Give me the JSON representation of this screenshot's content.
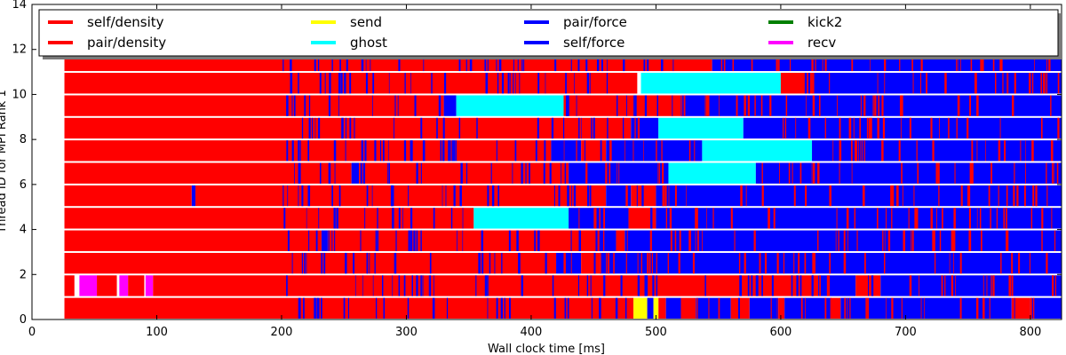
{
  "chart_data": {
    "type": "gantt",
    "xlabel": "Wall clock time [ms]",
    "ylabel": "Thread ID for MPI Rank 1",
    "xlim": [
      0,
      825
    ],
    "ylim": [
      0,
      14
    ],
    "xticks": [
      "0",
      "100",
      "200",
      "300",
      "400",
      "500",
      "600",
      "700",
      "800"
    ],
    "yticks": [
      "0",
      "2",
      "4",
      "6",
      "8",
      "10",
      "12",
      "14"
    ],
    "legend_position": "top",
    "legend": [
      {
        "name": "self/density",
        "color": "#ff0000"
      },
      {
        "name": "pair/density",
        "color": "#ff0000"
      },
      {
        "name": "send",
        "color": "#ffff00"
      },
      {
        "name": "ghost",
        "color": "#00ffff"
      },
      {
        "name": "pair/force",
        "color": "#0000ff"
      },
      {
        "name": "self/force",
        "color": "#0000ff"
      },
      {
        "name": "kick2",
        "color": "#008000"
      },
      {
        "name": "recv",
        "color": "#ff00ff"
      }
    ],
    "threads": [
      {
        "thread": 0,
        "spans": [
          {
            "task": "density",
            "start": 26,
            "end": 482
          },
          {
            "task": "send",
            "start": 482,
            "end": 493
          },
          {
            "task": "force",
            "start": 493,
            "end": 498
          },
          {
            "task": "send",
            "start": 498,
            "end": 502
          },
          {
            "task": "density",
            "start": 502,
            "end": 508
          },
          {
            "task": "force",
            "start": 508,
            "end": 520
          },
          {
            "task": "density",
            "start": 520,
            "end": 532
          },
          {
            "task": "force",
            "start": 532,
            "end": 560
          },
          {
            "task": "density",
            "start": 560,
            "end": 575
          },
          {
            "task": "force",
            "start": 575,
            "end": 598
          },
          {
            "task": "density",
            "start": 598,
            "end": 603
          },
          {
            "task": "force",
            "start": 603,
            "end": 640
          },
          {
            "task": "density",
            "start": 640,
            "end": 648
          },
          {
            "task": "force",
            "start": 648,
            "end": 785
          },
          {
            "task": "density",
            "start": 785,
            "end": 800
          },
          {
            "task": "force",
            "start": 800,
            "end": 825
          }
        ]
      },
      {
        "thread": 1,
        "spans": [
          {
            "task": "density",
            "start": 26,
            "end": 34
          },
          {
            "task": "recv",
            "start": 38,
            "end": 52
          },
          {
            "task": "density",
            "start": 52,
            "end": 68
          },
          {
            "task": "recv",
            "start": 70,
            "end": 77
          },
          {
            "task": "density",
            "start": 77,
            "end": 90
          },
          {
            "task": "recv",
            "start": 91,
            "end": 97
          },
          {
            "task": "density",
            "start": 97,
            "end": 630
          },
          {
            "task": "force",
            "start": 630,
            "end": 660
          },
          {
            "task": "density",
            "start": 660,
            "end": 680
          },
          {
            "task": "force",
            "start": 680,
            "end": 825
          }
        ]
      },
      {
        "thread": 2,
        "spans": [
          {
            "task": "density",
            "start": 26,
            "end": 420
          },
          {
            "task": "force",
            "start": 420,
            "end": 440
          },
          {
            "task": "density",
            "start": 440,
            "end": 455
          },
          {
            "task": "force",
            "start": 455,
            "end": 825
          }
        ]
      },
      {
        "thread": 3,
        "spans": [
          {
            "task": "density",
            "start": 26,
            "end": 232
          },
          {
            "task": "force",
            "start": 232,
            "end": 237
          },
          {
            "task": "density",
            "start": 237,
            "end": 455
          },
          {
            "task": "force",
            "start": 455,
            "end": 468
          },
          {
            "task": "density",
            "start": 468,
            "end": 475
          },
          {
            "task": "force",
            "start": 475,
            "end": 825
          }
        ]
      },
      {
        "thread": 4,
        "spans": [
          {
            "task": "density",
            "start": 26,
            "end": 354
          },
          {
            "task": "ghost",
            "start": 354,
            "end": 430
          },
          {
            "task": "force",
            "start": 430,
            "end": 478
          },
          {
            "task": "density",
            "start": 478,
            "end": 500
          },
          {
            "task": "force",
            "start": 500,
            "end": 825
          }
        ]
      },
      {
        "thread": 5,
        "spans": [
          {
            "task": "density",
            "start": 26,
            "end": 128
          },
          {
            "task": "force",
            "start": 128,
            "end": 131
          },
          {
            "task": "density",
            "start": 131,
            "end": 460
          },
          {
            "task": "force",
            "start": 460,
            "end": 480
          },
          {
            "task": "density",
            "start": 480,
            "end": 500
          },
          {
            "task": "force",
            "start": 500,
            "end": 825
          }
        ]
      },
      {
        "thread": 6,
        "spans": [
          {
            "task": "density",
            "start": 26,
            "end": 256
          },
          {
            "task": "force",
            "start": 256,
            "end": 262
          },
          {
            "task": "density",
            "start": 262,
            "end": 430
          },
          {
            "task": "force",
            "start": 430,
            "end": 510
          },
          {
            "task": "ghost",
            "start": 510,
            "end": 580
          },
          {
            "task": "force",
            "start": 580,
            "end": 825
          }
        ]
      },
      {
        "thread": 7,
        "spans": [
          {
            "task": "density",
            "start": 26,
            "end": 416
          },
          {
            "task": "force",
            "start": 416,
            "end": 440
          },
          {
            "task": "density",
            "start": 440,
            "end": 460
          },
          {
            "task": "force",
            "start": 460,
            "end": 537
          },
          {
            "task": "ghost",
            "start": 537,
            "end": 625
          },
          {
            "task": "force",
            "start": 625,
            "end": 825
          }
        ]
      },
      {
        "thread": 8,
        "spans": [
          {
            "task": "density",
            "start": 26,
            "end": 480
          },
          {
            "task": "force",
            "start": 480,
            "end": 502
          },
          {
            "task": "ghost",
            "start": 502,
            "end": 570
          },
          {
            "task": "force",
            "start": 570,
            "end": 825
          }
        ]
      },
      {
        "thread": 9,
        "spans": [
          {
            "task": "density",
            "start": 26,
            "end": 330
          },
          {
            "task": "force",
            "start": 330,
            "end": 340
          },
          {
            "task": "ghost",
            "start": 340,
            "end": 426
          },
          {
            "task": "density",
            "start": 426,
            "end": 520
          },
          {
            "task": "force",
            "start": 520,
            "end": 825
          }
        ]
      },
      {
        "thread": 10,
        "spans": [
          {
            "task": "density",
            "start": 26,
            "end": 485
          },
          {
            "task": "ghost",
            "start": 488,
            "end": 600
          },
          {
            "task": "density",
            "start": 600,
            "end": 625
          },
          {
            "task": "force",
            "start": 625,
            "end": 825
          }
        ]
      },
      {
        "thread": 11,
        "spans": [
          {
            "task": "density",
            "start": 26,
            "end": 545
          },
          {
            "task": "force",
            "start": 545,
            "end": 825
          }
        ]
      }
    ]
  }
}
